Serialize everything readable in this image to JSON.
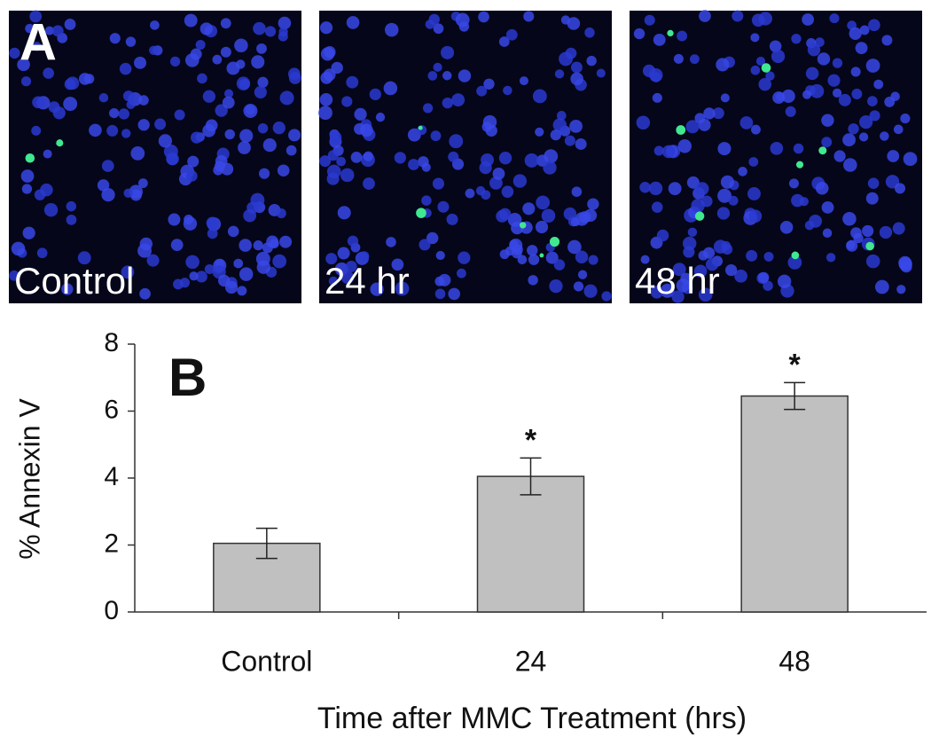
{
  "panel_a": {
    "label": "A",
    "images": [
      {
        "label": "Control"
      },
      {
        "label": "24 hr"
      },
      {
        "label": "48 hr"
      }
    ]
  },
  "chart_data": {
    "type": "bar",
    "panel_label": "B",
    "categories": [
      "Control",
      "24",
      "48"
    ],
    "values": [
      2.05,
      4.05,
      6.45
    ],
    "errors": [
      0.45,
      0.55,
      0.4
    ],
    "significance": [
      null,
      "*",
      "*"
    ],
    "color": "#c0c0c0",
    "y_label": "% Annexin V",
    "x_label": "Time after MMC Treatment (hrs)",
    "ylim": [
      0,
      8
    ],
    "yticks": [
      0,
      2,
      4,
      6,
      8
    ]
  }
}
